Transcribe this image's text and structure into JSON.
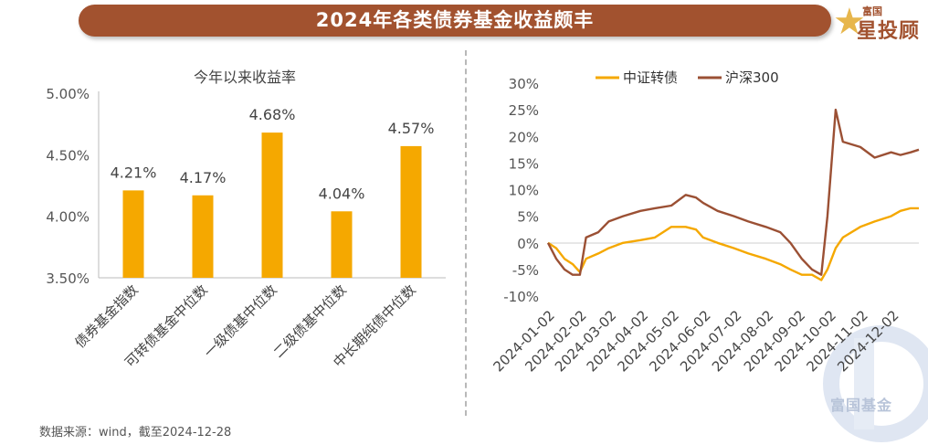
{
  "header": {
    "title": "2024年各类债券基金收益颇丰"
  },
  "logo": {
    "top_text": "富国",
    "main_text": "星投顾",
    "watermark_text": "富国基金"
  },
  "footer": {
    "source": "数据来源：wind，截至2024-12-28"
  },
  "colors": {
    "banner": "#a2522f",
    "bar": "#f5a800",
    "line_convertible": "#f5a800",
    "line_csi300": "#9b5034",
    "logo_star": "#e7b64c"
  },
  "chart_data": [
    {
      "type": "bar",
      "title": "今年以来收益率",
      "categories": [
        "债券基金指数",
        "可转债基金中位数",
        "一级债基中位数",
        "二级债基中位数",
        "中长期纯债中位数"
      ],
      "values": [
        4.21,
        4.17,
        4.68,
        4.04,
        4.57
      ],
      "data_labels": [
        "4.21%",
        "4.17%",
        "4.68%",
        "4.04%",
        "4.57%"
      ],
      "ylim": [
        3.5,
        5.0
      ],
      "y_ticks": [
        "3.50%",
        "4.00%",
        "4.50%",
        "5.00%"
      ],
      "grid": false
    },
    {
      "type": "line",
      "legend": [
        "中证转债",
        "沪深300"
      ],
      "legend_position": "top",
      "x_ticks": [
        "2024-01-02",
        "2024-02-02",
        "2024-03-02",
        "2024-04-02",
        "2024-05-02",
        "2024-06-02",
        "2024-07-02",
        "2024-08-02",
        "2024-09-02",
        "2024-10-02",
        "2024-11-02",
        "2024-12-02"
      ],
      "y_ticks": [
        "30%",
        "25%",
        "20%",
        "15%",
        "10%",
        "5%",
        "0%",
        "-5%",
        "-10%"
      ],
      "ylim": [
        -10,
        30
      ],
      "series": [
        {
          "name": "中证转债",
          "x": [
            "2024-01-02",
            "2024-01-10",
            "2024-01-18",
            "2024-01-26",
            "2024-02-02",
            "2024-02-08",
            "2024-02-20",
            "2024-03-01",
            "2024-03-15",
            "2024-04-01",
            "2024-04-15",
            "2024-05-01",
            "2024-05-15",
            "2024-05-25",
            "2024-06-01",
            "2024-06-15",
            "2024-07-01",
            "2024-07-15",
            "2024-08-01",
            "2024-08-15",
            "2024-08-25",
            "2024-09-05",
            "2024-09-15",
            "2024-09-24",
            "2024-09-30",
            "2024-10-08",
            "2024-10-15",
            "2024-11-01",
            "2024-11-15",
            "2024-12-01",
            "2024-12-10",
            "2024-12-20",
            "2024-12-28"
          ],
          "values": [
            0,
            -1,
            -3,
            -4,
            -5.5,
            -3,
            -2,
            -1,
            0,
            0.5,
            1,
            3,
            3,
            2.5,
            1,
            0,
            -1,
            -2,
            -3,
            -4,
            -5,
            -6,
            -6,
            -7,
            -5,
            -1,
            1,
            3,
            4,
            5,
            6,
            6.5,
            6.5
          ]
        },
        {
          "name": "沪深300",
          "x": [
            "2024-01-02",
            "2024-01-10",
            "2024-01-18",
            "2024-01-26",
            "2024-02-02",
            "2024-02-08",
            "2024-02-20",
            "2024-03-01",
            "2024-03-15",
            "2024-04-01",
            "2024-04-15",
            "2024-05-01",
            "2024-05-15",
            "2024-05-25",
            "2024-06-01",
            "2024-06-15",
            "2024-07-01",
            "2024-07-15",
            "2024-08-01",
            "2024-08-15",
            "2024-08-25",
            "2024-09-05",
            "2024-09-15",
            "2024-09-24",
            "2024-09-30",
            "2024-10-08",
            "2024-10-15",
            "2024-11-01",
            "2024-11-15",
            "2024-12-01",
            "2024-12-10",
            "2024-12-20",
            "2024-12-28"
          ],
          "values": [
            0,
            -3,
            -5,
            -6,
            -6,
            1,
            2,
            4,
            5,
            6,
            6.5,
            7,
            9,
            8.5,
            7.5,
            6,
            5,
            4,
            3,
            2,
            0,
            -3,
            -5,
            -6,
            5,
            25,
            19,
            18,
            16,
            17,
            16.5,
            17,
            17.5
          ]
        }
      ]
    }
  ]
}
